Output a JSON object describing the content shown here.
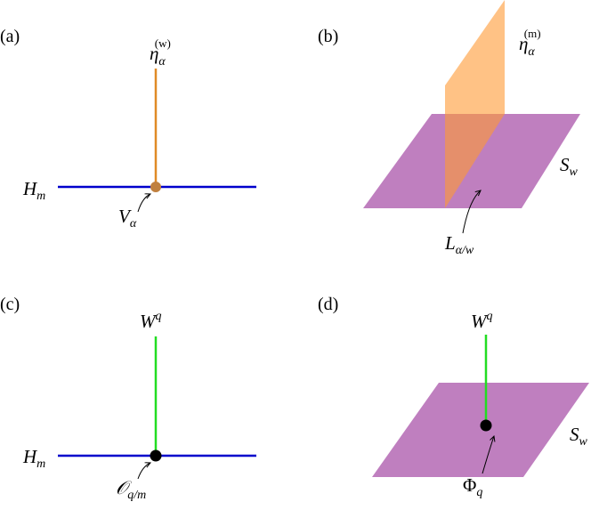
{
  "panels": [
    {
      "tag": "(a)",
      "top": {
        "base": "η",
        "sub": "α",
        "sup": "(w)"
      },
      "left": {
        "base": "H",
        "sub": "m"
      },
      "point": {
        "base": "V",
        "sub": "α"
      }
    },
    {
      "tag": "(b)",
      "top": {
        "base": "η",
        "sub": "α",
        "sup": "(m)"
      },
      "right": {
        "base": "S",
        "sub": "w"
      },
      "point": {
        "base": "L",
        "sub": "α/w"
      }
    },
    {
      "tag": "(c)",
      "top": {
        "base": "W",
        "sup": "q"
      },
      "left": {
        "base": "H",
        "sub": "m"
      },
      "point": {
        "base": "𝒪",
        "sub": "q/m"
      }
    },
    {
      "tag": "(d)",
      "top": {
        "base": "W",
        "sup": "q"
      },
      "right": {
        "base": "S",
        "sub": "w"
      },
      "point": {
        "base": "Φ",
        "sub": "q"
      }
    }
  ]
}
